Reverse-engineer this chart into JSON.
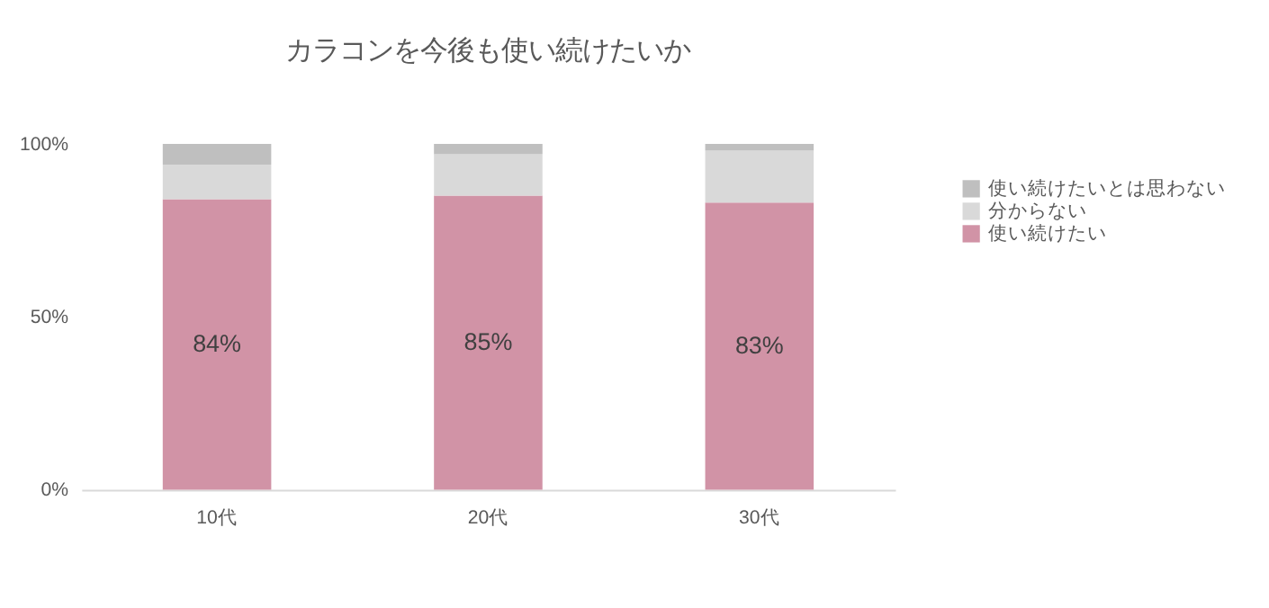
{
  "chart_data": {
    "type": "bar",
    "title": "カラコンを今後も使い続けたいか",
    "stacked": true,
    "categories": [
      "10代",
      "20代",
      "30代"
    ],
    "series": [
      {
        "name": "使い続けたい",
        "color": "#d193a6",
        "values": [
          84,
          85,
          83
        ],
        "value_labels": [
          "84%",
          "85%",
          "83%"
        ]
      },
      {
        "name": "分からない",
        "color": "#d9d9d9",
        "values": [
          10,
          12,
          15
        ]
      },
      {
        "name": "使い続けたいとは思わない",
        "color": "#bfbfbf",
        "values": [
          6,
          3,
          2
        ]
      }
    ],
    "ylim": [
      0,
      100
    ],
    "yticks": [
      {
        "value": 0,
        "label": "0%"
      },
      {
        "value": 50,
        "label": "50%"
      },
      {
        "value": 100,
        "label": "100%"
      }
    ],
    "grid": false,
    "legend": "right"
  }
}
